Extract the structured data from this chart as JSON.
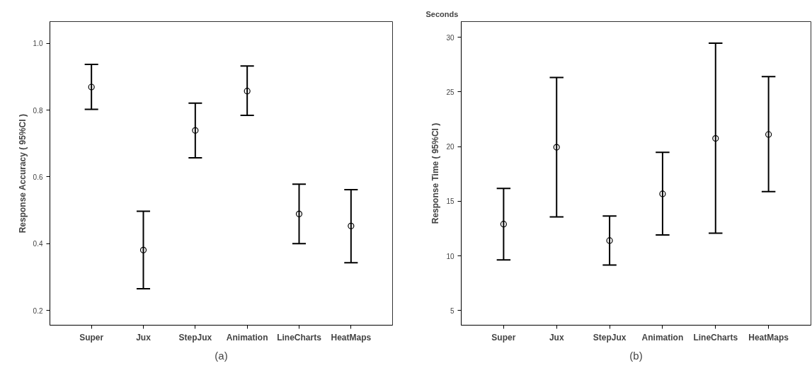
{
  "chart_data": [
    {
      "type": "scatter",
      "ylabel": "Response Accuracy ( 95%CI )",
      "categories": [
        "Super",
        "Jux",
        "StepJux",
        "Animation",
        "LineCharts",
        "HeatMaps"
      ],
      "values": [
        0.869,
        0.381,
        0.739,
        0.857,
        0.489,
        0.453
      ],
      "color": "#000000",
      "errors": [
        [
          0.802,
          0.937
        ],
        [
          0.265,
          0.497
        ],
        [
          0.657,
          0.821
        ],
        [
          0.784,
          0.932
        ],
        [
          0.4,
          0.578
        ],
        [
          0.343,
          0.562
        ]
      ],
      "ylim": [
        0.156,
        1.065
      ],
      "yticks": [
        0.2,
        0.4,
        0.6,
        0.8,
        {
          "value": 1.0,
          "label": "1.0"
        }
      ],
      "marker": "circle",
      "grid": false,
      "legend": false,
      "annotations": [
        "(a)"
      ]
    },
    {
      "type": "scatter",
      "ylabel": "Response Time ( 95%CI )",
      "categories": [
        "Super",
        "Jux",
        "StepJux",
        "Animation",
        "LineCharts",
        "HeatMaps"
      ],
      "values": [
        12.91,
        19.94,
        11.4,
        15.68,
        20.75,
        21.11
      ],
      "color": "#000000",
      "errors": [
        [
          9.63,
          16.17
        ],
        [
          13.57,
          26.33
        ],
        [
          9.17,
          13.65
        ],
        [
          11.91,
          19.47
        ],
        [
          12.08,
          29.46
        ],
        [
          15.88,
          26.4
        ]
      ],
      "ylim": [
        3.66,
        31.44
      ],
      "yticks": [
        5,
        10,
        15,
        20,
        25,
        30
      ],
      "marker": "circle",
      "grid": false,
      "legend": false,
      "annotations": [
        "Seconds",
        "(b)"
      ]
    }
  ]
}
